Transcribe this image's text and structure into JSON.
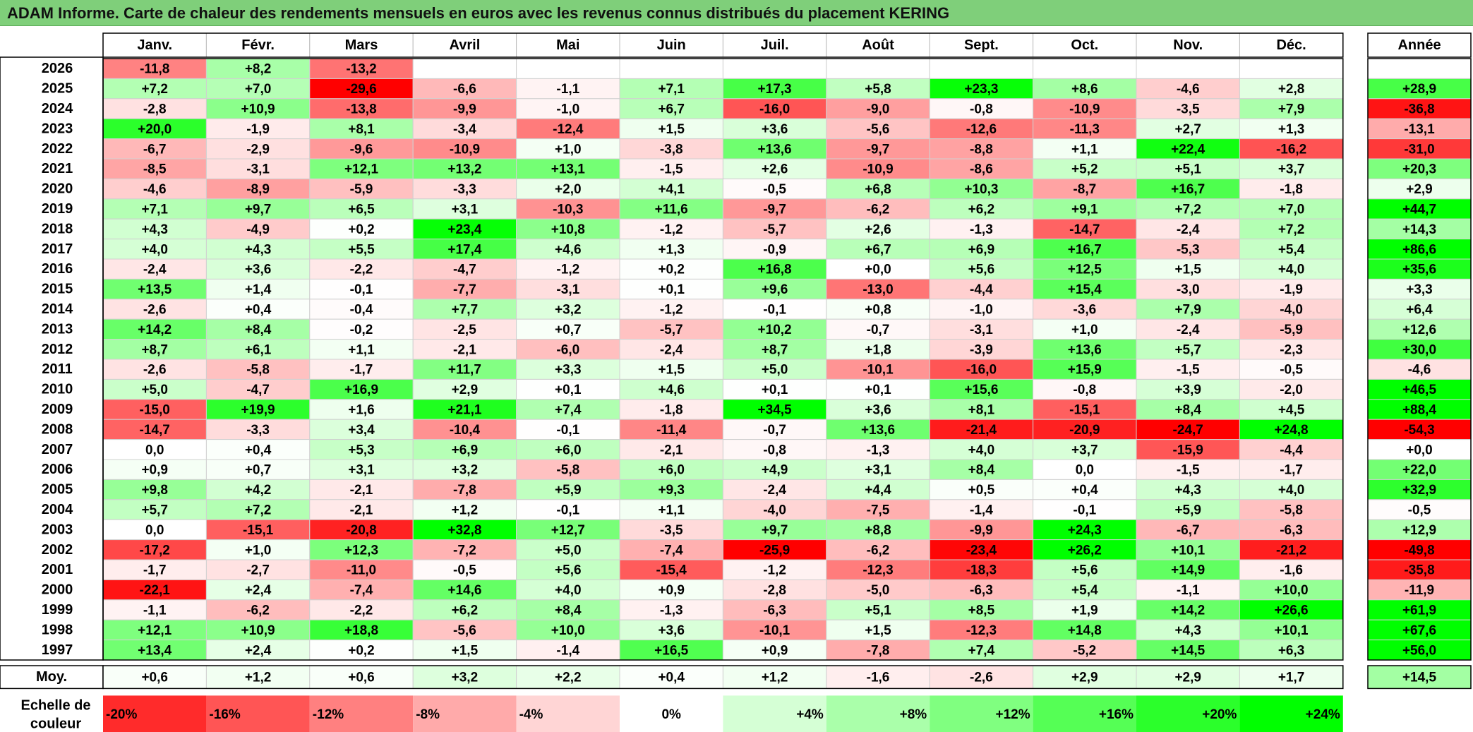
{
  "title": "ADAM Informe. Carte de chaleur des rendements mensuels en euros avec les revenus connus distribués du placement KERING",
  "chart_data": {
    "type": "heatmap",
    "months": [
      "Janv.",
      "Févr.",
      "Mars",
      "Avril",
      "Mai",
      "Juin",
      "Juil.",
      "Août",
      "Sept.",
      "Oct.",
      "Nov.",
      "Déc."
    ],
    "year_label": "Année",
    "avg_label": "Moy.",
    "rows": [
      {
        "year": "2026",
        "months": [
          "-11,8",
          "+8,2",
          "-13,2",
          "",
          "",
          "",
          "",
          "",
          "",
          "",
          "",
          ""
        ],
        "annual": ""
      },
      {
        "year": "2025",
        "months": [
          "+7,2",
          "+7,0",
          "-29,6",
          "-6,6",
          "-1,1",
          "+7,1",
          "+17,3",
          "+5,8",
          "+23,3",
          "+8,6",
          "-4,6",
          "+2,8"
        ],
        "annual": "+28,9"
      },
      {
        "year": "2024",
        "months": [
          "-2,8",
          "+10,9",
          "-13,8",
          "-9,9",
          "-1,0",
          "+6,7",
          "-16,0",
          "-9,0",
          "-0,8",
          "-10,9",
          "-3,5",
          "+7,9"
        ],
        "annual": "-36,8"
      },
      {
        "year": "2023",
        "months": [
          "+20,0",
          "-1,9",
          "+8,1",
          "-3,4",
          "-12,4",
          "+1,5",
          "+3,6",
          "-5,6",
          "-12,6",
          "-11,3",
          "+2,7",
          "+1,3"
        ],
        "annual": "-13,1"
      },
      {
        "year": "2022",
        "months": [
          "-6,7",
          "-2,9",
          "-9,6",
          "-10,9",
          "+1,0",
          "-3,8",
          "+13,6",
          "-9,7",
          "-8,8",
          "+1,1",
          "+22,4",
          "-16,2"
        ],
        "annual": "-31,0"
      },
      {
        "year": "2021",
        "months": [
          "-8,5",
          "-3,1",
          "+12,1",
          "+13,2",
          "+13,1",
          "-1,5",
          "+2,6",
          "-10,9",
          "-8,6",
          "+5,2",
          "+5,1",
          "+3,7"
        ],
        "annual": "+20,3"
      },
      {
        "year": "2020",
        "months": [
          "-4,6",
          "-8,9",
          "-5,9",
          "-3,3",
          "+2,0",
          "+4,1",
          "-0,5",
          "+6,8",
          "+10,3",
          "-8,7",
          "+16,7",
          "-1,8"
        ],
        "annual": "+2,9"
      },
      {
        "year": "2019",
        "months": [
          "+7,1",
          "+9,7",
          "+6,5",
          "+3,1",
          "-10,3",
          "+11,6",
          "-9,7",
          "-6,2",
          "+6,2",
          "+9,1",
          "+7,2",
          "+7,0"
        ],
        "annual": "+44,7"
      },
      {
        "year": "2018",
        "months": [
          "+4,3",
          "-4,9",
          "+0,2",
          "+23,4",
          "+10,8",
          "-1,2",
          "-5,7",
          "+2,6",
          "-1,3",
          "-14,7",
          "-2,4",
          "+7,2"
        ],
        "annual": "+14,3"
      },
      {
        "year": "2017",
        "months": [
          "+4,0",
          "+4,3",
          "+5,5",
          "+17,4",
          "+4,6",
          "+1,3",
          "-0,9",
          "+6,7",
          "+6,9",
          "+16,7",
          "-5,3",
          "+5,4"
        ],
        "annual": "+86,6"
      },
      {
        "year": "2016",
        "months": [
          "-2,4",
          "+3,6",
          "-2,2",
          "-4,7",
          "-1,2",
          "+0,2",
          "+16,8",
          "+0,0",
          "+5,6",
          "+12,5",
          "+1,5",
          "+4,0"
        ],
        "annual": "+35,6"
      },
      {
        "year": "2015",
        "months": [
          "+13,5",
          "+1,4",
          "-0,1",
          "-7,7",
          "-3,1",
          "+0,1",
          "+9,6",
          "-13,0",
          "-4,4",
          "+15,4",
          "-3,0",
          "-1,9"
        ],
        "annual": "+3,3"
      },
      {
        "year": "2014",
        "months": [
          "-2,6",
          "+0,4",
          "-0,4",
          "+7,7",
          "+3,2",
          "-1,2",
          "-0,1",
          "+0,8",
          "-1,0",
          "-3,6",
          "+7,9",
          "-4,0"
        ],
        "annual": "+6,4"
      },
      {
        "year": "2013",
        "months": [
          "+14,2",
          "+8,4",
          "-0,2",
          "-2,5",
          "+0,7",
          "-5,7",
          "+10,2",
          "-0,7",
          "-3,1",
          "+1,0",
          "-2,4",
          "-5,9"
        ],
        "annual": "+12,6"
      },
      {
        "year": "2012",
        "months": [
          "+8,7",
          "+6,1",
          "+1,1",
          "-2,1",
          "-6,0",
          "-2,4",
          "+8,7",
          "+1,8",
          "-3,9",
          "+13,6",
          "+5,7",
          "-2,3"
        ],
        "annual": "+30,0"
      },
      {
        "year": "2011",
        "months": [
          "-2,6",
          "-5,8",
          "-1,7",
          "+11,7",
          "+3,3",
          "+1,5",
          "+5,0",
          "-10,1",
          "-16,0",
          "+15,9",
          "-1,5",
          "-0,5"
        ],
        "annual": "-4,6"
      },
      {
        "year": "2010",
        "months": [
          "+5,0",
          "-4,7",
          "+16,9",
          "+2,9",
          "+0,1",
          "+4,6",
          "+0,1",
          "+0,1",
          "+15,6",
          "-0,8",
          "+3,9",
          "-2,0"
        ],
        "annual": "+46,5"
      },
      {
        "year": "2009",
        "months": [
          "-15,0",
          "+19,9",
          "+1,6",
          "+21,1",
          "+7,4",
          "-1,8",
          "+34,5",
          "+3,6",
          "+8,1",
          "-15,1",
          "+8,4",
          "+4,5"
        ],
        "annual": "+88,4"
      },
      {
        "year": "2008",
        "months": [
          "-14,7",
          "-3,3",
          "+3,4",
          "-10,4",
          "-0,1",
          "-11,4",
          "-0,7",
          "+13,6",
          "-21,4",
          "-20,9",
          "-24,7",
          "+24,8"
        ],
        "annual": "-54,3"
      },
      {
        "year": "2007",
        "months": [
          "0,0",
          "+0,4",
          "+5,3",
          "+6,9",
          "+6,0",
          "-2,1",
          "-0,8",
          "-1,3",
          "+4,0",
          "+3,7",
          "-15,9",
          "-4,4"
        ],
        "annual": "+0,0"
      },
      {
        "year": "2006",
        "months": [
          "+0,9",
          "+0,7",
          "+3,1",
          "+3,2",
          "-5,8",
          "+6,0",
          "+4,9",
          "+3,1",
          "+8,4",
          "0,0",
          "-1,5",
          "-1,7"
        ],
        "annual": "+22,0"
      },
      {
        "year": "2005",
        "months": [
          "+9,8",
          "+4,2",
          "-2,1",
          "-7,8",
          "+5,9",
          "+9,3",
          "-2,4",
          "+4,4",
          "+0,5",
          "+0,4",
          "+4,3",
          "+4,0"
        ],
        "annual": "+32,9"
      },
      {
        "year": "2004",
        "months": [
          "+5,7",
          "+7,2",
          "-2,1",
          "+1,2",
          "-0,1",
          "+1,1",
          "-4,0",
          "-7,5",
          "-1,4",
          "-0,1",
          "+5,9",
          "-5,8"
        ],
        "annual": "-0,5"
      },
      {
        "year": "2003",
        "months": [
          "0,0",
          "-15,1",
          "-20,8",
          "+32,8",
          "+12,7",
          "-3,5",
          "+9,7",
          "+8,8",
          "-9,9",
          "+24,3",
          "-6,7",
          "-6,3"
        ],
        "annual": "+12,9"
      },
      {
        "year": "2002",
        "months": [
          "-17,2",
          "+1,0",
          "+12,3",
          "-7,2",
          "+5,0",
          "-7,4",
          "-25,9",
          "-6,2",
          "-23,4",
          "+26,2",
          "+10,1",
          "-21,2"
        ],
        "annual": "-49,8"
      },
      {
        "year": "2001",
        "months": [
          "-1,7",
          "-2,7",
          "-11,0",
          "-0,5",
          "+5,6",
          "-15,4",
          "-1,2",
          "-12,3",
          "-18,3",
          "+5,6",
          "+14,9",
          "-1,6"
        ],
        "annual": "-35,8"
      },
      {
        "year": "2000",
        "months": [
          "-22,1",
          "+2,4",
          "-7,4",
          "+14,6",
          "+4,0",
          "+0,9",
          "-2,8",
          "-5,0",
          "-6,3",
          "+5,4",
          "-1,1",
          "+10,0"
        ],
        "annual": "-11,9"
      },
      {
        "year": "1999",
        "months": [
          "-1,1",
          "-6,2",
          "-2,2",
          "+6,2",
          "+8,4",
          "-1,3",
          "-6,3",
          "+5,1",
          "+8,5",
          "+1,9",
          "+14,2",
          "+26,6"
        ],
        "annual": "+61,9"
      },
      {
        "year": "1998",
        "months": [
          "+12,1",
          "+10,9",
          "+18,8",
          "-5,6",
          "+10,0",
          "+3,6",
          "-10,1",
          "+1,5",
          "-12,3",
          "+14,8",
          "+4,3",
          "+10,1"
        ],
        "annual": "+67,6"
      },
      {
        "year": "1997",
        "months": [
          "+13,4",
          "+2,4",
          "+0,2",
          "+1,5",
          "-1,4",
          "+16,5",
          "+0,9",
          "-7,8",
          "+7,4",
          "-5,2",
          "+14,5",
          "+6,3"
        ],
        "annual": "+56,0"
      }
    ],
    "averages": {
      "months": [
        "+0,6",
        "+1,2",
        "+0,6",
        "+3,2",
        "+2,2",
        "+0,4",
        "+1,2",
        "-1,6",
        "-2,6",
        "+2,9",
        "+2,9",
        "+1,7"
      ],
      "annual": "+14,5"
    },
    "scale_label": "Echelle de couleur",
    "scale": [
      "-20%",
      "-16%",
      "-12%",
      "-8%",
      "-4%",
      "0%",
      "+4%",
      "+8%",
      "+12%",
      "+16%",
      "+20%",
      "+24%"
    ],
    "color_negative": "#ff0000",
    "color_zero": "#ffffff",
    "color_positive": "#00ff00"
  }
}
